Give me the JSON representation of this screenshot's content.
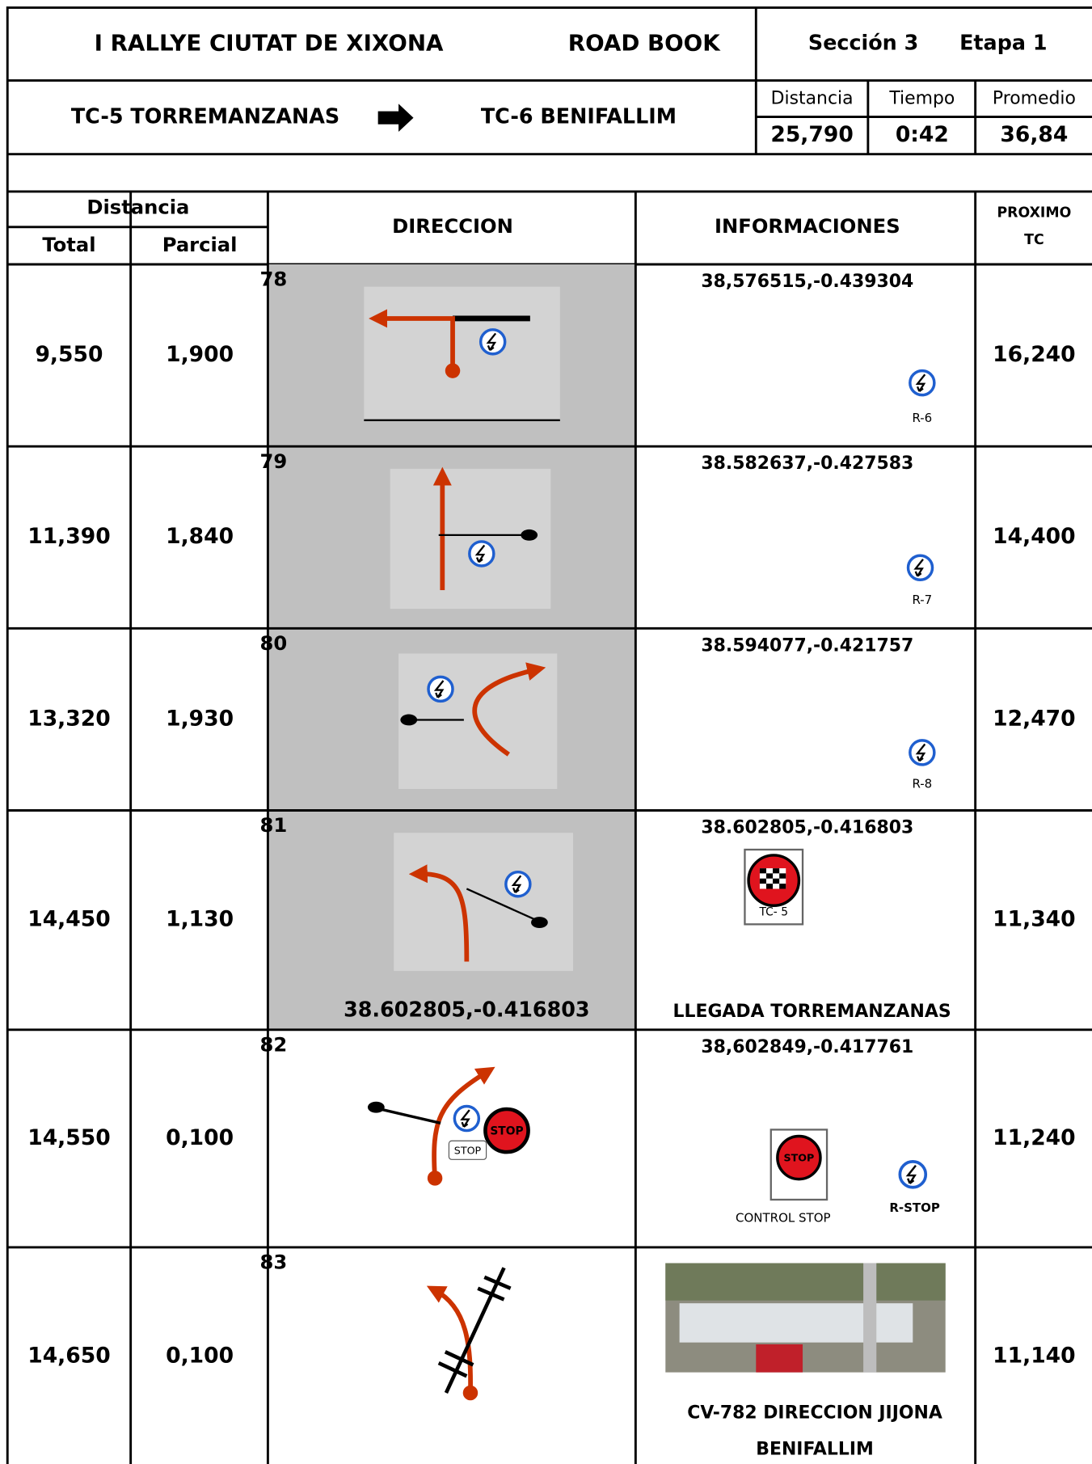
{
  "header": {
    "title": "I RALLYE CIUTAT DE XIXONA",
    "doc_type": "ROAD BOOK",
    "section": "Sección 3",
    "stage": "Etapa 1"
  },
  "route": {
    "from": "TC-5 TORREMANZANAS",
    "to": "TC-6 BENIFALLIM",
    "labels": [
      "Distancia",
      "Tiempo",
      "Promedio"
    ],
    "values": [
      "25,790",
      "0:42",
      "36,84"
    ]
  },
  "table": {
    "headers": {
      "distance": "Distancia",
      "total": "Total",
      "partial": "Parcial",
      "direction": "DIRECCION",
      "info": "INFORMACIONES",
      "next_1": "PROXIMO",
      "next_2": "TC"
    },
    "stop_sign": "STOP",
    "rows": [
      {
        "total": "9,550",
        "partial": "1,900",
        "number": "78",
        "coords": "38,576515,-0.439304",
        "sign": "R-6",
        "next": "16,240"
      },
      {
        "total": "11,390",
        "partial": "1,840",
        "number": "79",
        "coords": "38.582637,-0.427583",
        "sign": "R-7",
        "next": "14,400"
      },
      {
        "total": "13,320",
        "partial": "1,930",
        "number": "80",
        "coords": "38.594077,-0.421757",
        "sign": "R-8",
        "next": "12,470"
      },
      {
        "total": "14,450",
        "partial": "1,130",
        "number": "81",
        "coords": "38.602805,-0.416803",
        "sign": "TC- 5",
        "direction_coords": "38.602805,-0.416803",
        "note": "LLEGADA TORREMANZANAS",
        "next": "11,340"
      },
      {
        "total": "14,550",
        "partial": "0,100",
        "number": "82",
        "coords": "38,602849,-0.417761",
        "control": "CONTROL STOP",
        "sign": "R-STOP",
        "next": "11,240"
      },
      {
        "total": "14,650",
        "partial": "0,100",
        "number": "83",
        "note": "CV-782 DIRECCION JIJONA",
        "note_2": "BENIFALLIM",
        "next": "11,140"
      }
    ]
  }
}
